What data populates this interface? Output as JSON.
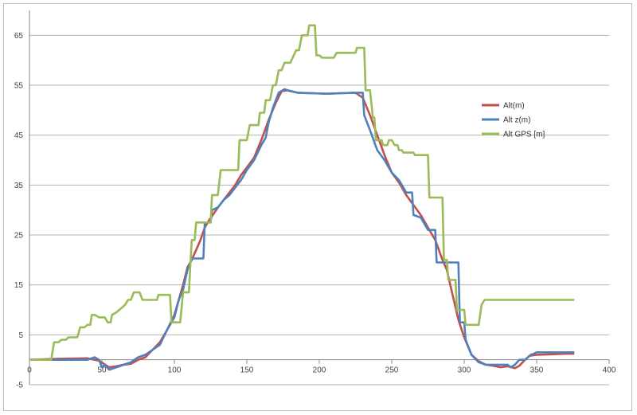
{
  "chart_data": {
    "type": "line",
    "title": "",
    "xlabel": "",
    "ylabel": "",
    "xlim": [
      0,
      400
    ],
    "ylim": [
      -5,
      70
    ],
    "x_ticks": [
      0,
      50,
      100,
      150,
      200,
      250,
      300,
      350,
      400
    ],
    "y_ticks": [
      -5,
      5,
      15,
      25,
      35,
      45,
      55,
      65
    ],
    "grid": "horizontal",
    "legend_position": "right",
    "series": [
      {
        "name": "Alt(m)",
        "color": "#c0504d",
        "points": [
          [
            0,
            0
          ],
          [
            20,
            0.2
          ],
          [
            40,
            0.3
          ],
          [
            48,
            -0.2
          ],
          [
            55,
            -1.5
          ],
          [
            60,
            -1.3
          ],
          [
            65,
            -1
          ],
          [
            70,
            -0.8
          ],
          [
            75,
            0
          ],
          [
            80,
            0.5
          ],
          [
            85,
            2
          ],
          [
            90,
            3.5
          ],
          [
            95,
            6
          ],
          [
            100,
            9
          ],
          [
            103,
            12
          ],
          [
            106,
            15
          ],
          [
            109,
            18.5
          ],
          [
            112,
            20
          ],
          [
            115,
            22
          ],
          [
            118,
            24
          ],
          [
            121,
            26.5
          ],
          [
            124,
            28
          ],
          [
            127,
            29.2
          ],
          [
            130,
            30.5
          ],
          [
            134,
            32
          ],
          [
            138,
            33.5
          ],
          [
            142,
            35
          ],
          [
            146,
            37
          ],
          [
            150,
            38.5
          ],
          [
            155,
            40.5
          ],
          [
            160,
            44
          ],
          [
            165,
            48
          ],
          [
            170,
            51.5
          ],
          [
            174,
            53.8
          ],
          [
            178,
            54
          ],
          [
            185,
            53.5
          ],
          [
            195,
            53.4
          ],
          [
            205,
            53.3
          ],
          [
            215,
            53.4
          ],
          [
            225,
            53.5
          ],
          [
            230,
            52.5
          ],
          [
            235,
            49
          ],
          [
            240,
            45
          ],
          [
            245,
            41
          ],
          [
            250,
            37.5
          ],
          [
            255,
            35.5
          ],
          [
            260,
            33
          ],
          [
            265,
            31
          ],
          [
            270,
            29
          ],
          [
            275,
            26.5
          ],
          [
            280,
            24
          ],
          [
            285,
            20
          ],
          [
            288,
            18
          ],
          [
            292,
            13
          ],
          [
            296,
            8
          ],
          [
            300,
            4.5
          ],
          [
            305,
            1
          ],
          [
            310,
            -0.3
          ],
          [
            315,
            -1
          ],
          [
            320,
            -1.2
          ],
          [
            325,
            -1.5
          ],
          [
            330,
            -1.3
          ],
          [
            335,
            -1.7
          ],
          [
            338,
            -1.2
          ],
          [
            342,
            0
          ],
          [
            345,
            0.8
          ],
          [
            350,
            1
          ],
          [
            360,
            1.1
          ],
          [
            370,
            1.2
          ],
          [
            376,
            1.2
          ]
        ]
      },
      {
        "name": "Alt z(m)",
        "color": "#4f81bd",
        "points": [
          [
            0,
            0
          ],
          [
            40,
            0
          ],
          [
            45,
            0.5
          ],
          [
            48,
            0
          ],
          [
            50,
            -1.5
          ],
          [
            52,
            -1
          ],
          [
            55,
            -2
          ],
          [
            60,
            -1.5
          ],
          [
            65,
            -1
          ],
          [
            70,
            -0.5
          ],
          [
            75,
            0.5
          ],
          [
            80,
            1
          ],
          [
            85,
            2
          ],
          [
            90,
            3
          ],
          [
            95,
            6
          ],
          [
            100,
            8.5
          ],
          [
            103,
            12
          ],
          [
            106,
            14
          ],
          [
            109,
            18
          ],
          [
            112,
            20.3
          ],
          [
            120,
            20.3
          ],
          [
            121,
            27.5
          ],
          [
            125,
            27.5
          ],
          [
            126,
            30
          ],
          [
            130,
            30.5
          ],
          [
            134,
            32
          ],
          [
            138,
            33
          ],
          [
            142,
            34.5
          ],
          [
            146,
            36
          ],
          [
            150,
            38
          ],
          [
            155,
            40
          ],
          [
            160,
            43
          ],
          [
            163,
            44.5
          ],
          [
            165,
            47.5
          ],
          [
            168,
            50.5
          ],
          [
            172,
            53.5
          ],
          [
            176,
            54.2
          ],
          [
            180,
            53.8
          ],
          [
            185,
            53.5
          ],
          [
            195,
            53.4
          ],
          [
            205,
            53.3
          ],
          [
            215,
            53.4
          ],
          [
            225,
            53.5
          ],
          [
            230,
            53.5
          ],
          [
            231,
            49
          ],
          [
            235,
            46
          ],
          [
            240,
            42
          ],
          [
            245,
            40
          ],
          [
            250,
            37.5
          ],
          [
            255,
            36
          ],
          [
            260,
            33.5
          ],
          [
            264,
            33.5
          ],
          [
            265,
            29
          ],
          [
            270,
            28.5
          ],
          [
            275,
            26
          ],
          [
            280,
            26
          ],
          [
            281,
            19.5
          ],
          [
            296,
            19.5
          ],
          [
            297,
            7.5
          ],
          [
            300,
            7.5
          ],
          [
            301,
            4
          ],
          [
            305,
            1
          ],
          [
            310,
            -0.5
          ],
          [
            315,
            -1
          ],
          [
            320,
            -1
          ],
          [
            325,
            -1
          ],
          [
            330,
            -1
          ],
          [
            332,
            -1.5
          ],
          [
            335,
            -1
          ],
          [
            338,
            0
          ],
          [
            342,
            0
          ],
          [
            344,
            0.5
          ],
          [
            346,
            1
          ],
          [
            348,
            1.2
          ],
          [
            350,
            1.5
          ],
          [
            376,
            1.5
          ]
        ]
      },
      {
        "name": "Alt GPS [m]",
        "color": "#9bbb59",
        "points": [
          [
            0,
            0
          ],
          [
            15,
            0
          ],
          [
            17,
            3.5
          ],
          [
            20,
            3.5
          ],
          [
            22,
            4
          ],
          [
            25,
            4
          ],
          [
            27,
            4.5
          ],
          [
            33,
            4.5
          ],
          [
            35,
            6.5
          ],
          [
            38,
            6.5
          ],
          [
            40,
            7
          ],
          [
            42,
            7
          ],
          [
            43,
            9
          ],
          [
            45,
            9
          ],
          [
            48,
            8.5
          ],
          [
            52,
            8.5
          ],
          [
            54,
            7.5
          ],
          [
            56,
            7.5
          ],
          [
            57,
            9
          ],
          [
            60,
            9.5
          ],
          [
            62,
            10
          ],
          [
            64,
            10.5
          ],
          [
            66,
            11
          ],
          [
            68,
            12
          ],
          [
            70,
            12
          ],
          [
            72,
            13.5
          ],
          [
            76,
            13.5
          ],
          [
            78,
            12
          ],
          [
            88,
            12
          ],
          [
            89,
            13
          ],
          [
            97,
            13
          ],
          [
            98,
            7.5
          ],
          [
            104,
            7.5
          ],
          [
            106,
            13.5
          ],
          [
            110,
            13.5
          ],
          [
            112,
            24
          ],
          [
            114,
            24
          ],
          [
            115,
            27.5
          ],
          [
            125,
            27.5
          ],
          [
            126,
            33
          ],
          [
            130,
            33
          ],
          [
            132,
            38
          ],
          [
            144,
            38
          ],
          [
            145,
            44
          ],
          [
            150,
            44
          ],
          [
            152,
            47
          ],
          [
            158,
            47
          ],
          [
            159,
            49.5
          ],
          [
            162,
            49.5
          ],
          [
            163,
            52
          ],
          [
            166,
            52
          ],
          [
            168,
            55
          ],
          [
            170,
            55
          ],
          [
            172,
            58
          ],
          [
            174,
            58
          ],
          [
            176,
            59.5
          ],
          [
            180,
            59.5
          ],
          [
            184,
            62
          ],
          [
            186,
            62
          ],
          [
            188,
            65
          ],
          [
            192,
            65
          ],
          [
            193,
            67
          ],
          [
            197,
            67
          ],
          [
            198,
            61
          ],
          [
            200,
            61
          ],
          [
            202,
            60.5
          ],
          [
            210,
            60.5
          ],
          [
            212,
            61.5
          ],
          [
            225,
            61.5
          ],
          [
            226,
            62.5
          ],
          [
            231,
            62.5
          ],
          [
            232,
            54
          ],
          [
            235,
            54
          ],
          [
            237,
            48.5
          ],
          [
            238,
            48.5
          ],
          [
            239,
            44
          ],
          [
            243,
            44
          ],
          [
            244,
            43
          ],
          [
            247,
            43
          ],
          [
            248,
            44
          ],
          [
            250,
            44
          ],
          [
            252,
            43
          ],
          [
            254,
            43
          ],
          [
            255,
            42
          ],
          [
            257,
            42
          ],
          [
            258,
            41.5
          ],
          [
            265,
            41.5
          ],
          [
            266,
            41
          ],
          [
            275,
            41
          ],
          [
            276,
            32.5
          ],
          [
            285,
            32.5
          ],
          [
            286,
            20
          ],
          [
            288,
            20
          ],
          [
            289,
            16
          ],
          [
            294,
            16
          ],
          [
            295,
            10
          ],
          [
            300,
            10
          ],
          [
            301,
            7
          ],
          [
            310,
            7
          ],
          [
            312,
            11
          ],
          [
            314,
            12
          ],
          [
            376,
            12
          ]
        ]
      }
    ]
  },
  "icons": {
    "legend_marker": "line-swatch"
  }
}
